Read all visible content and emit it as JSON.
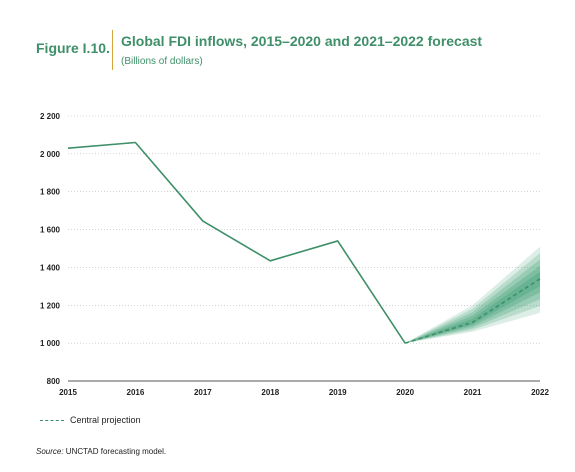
{
  "figure": {
    "label": "Figure I.10.",
    "title": "Global FDI inflows, 2015–2020 and 2021–2022 forecast",
    "subtitle": "(Billions of dollars)",
    "source_label": "Source:",
    "source_text": " UNCTAD forecasting model."
  },
  "legend": {
    "central_projection": "Central projection"
  },
  "colors": {
    "line": "#3f8f69",
    "fan": "#3f9e74",
    "title": "#3f8f69",
    "rule": "#d7a43b"
  },
  "chart_data": {
    "type": "line",
    "x": [
      2015,
      2016,
      2017,
      2018,
      2019,
      2020
    ],
    "series": [
      {
        "values": [
          2030,
          2060,
          1645,
          1435,
          1540,
          1000
        ]
      },
      {
        "name": "Central projection",
        "style": "dashed",
        "x": [
          2020,
          2021,
          2022
        ],
        "values": [
          1000,
          1110,
          1340
        ]
      }
    ],
    "fan_band": {
      "x": [
        2020,
        2021,
        2022
      ],
      "lower": [
        1000,
        1060,
        1160
      ],
      "upper": [
        1000,
        1200,
        1510
      ]
    },
    "xticks": [
      "2015",
      "2016",
      "2017",
      "2018",
      "2019",
      "2020",
      "2021",
      "2022"
    ],
    "yticks": [
      800,
      1000,
      1200,
      1400,
      1600,
      1800,
      2000,
      2200
    ],
    "ytick_labels": [
      "800",
      "1 000",
      "1 200",
      "1 400",
      "1 600",
      "1 800",
      "2 000",
      "2 200"
    ],
    "ylim": [
      800,
      2200
    ],
    "xlim": [
      2015,
      2022
    ],
    "grid": "horizontal-dotted",
    "legend_position": "bottom-left"
  }
}
